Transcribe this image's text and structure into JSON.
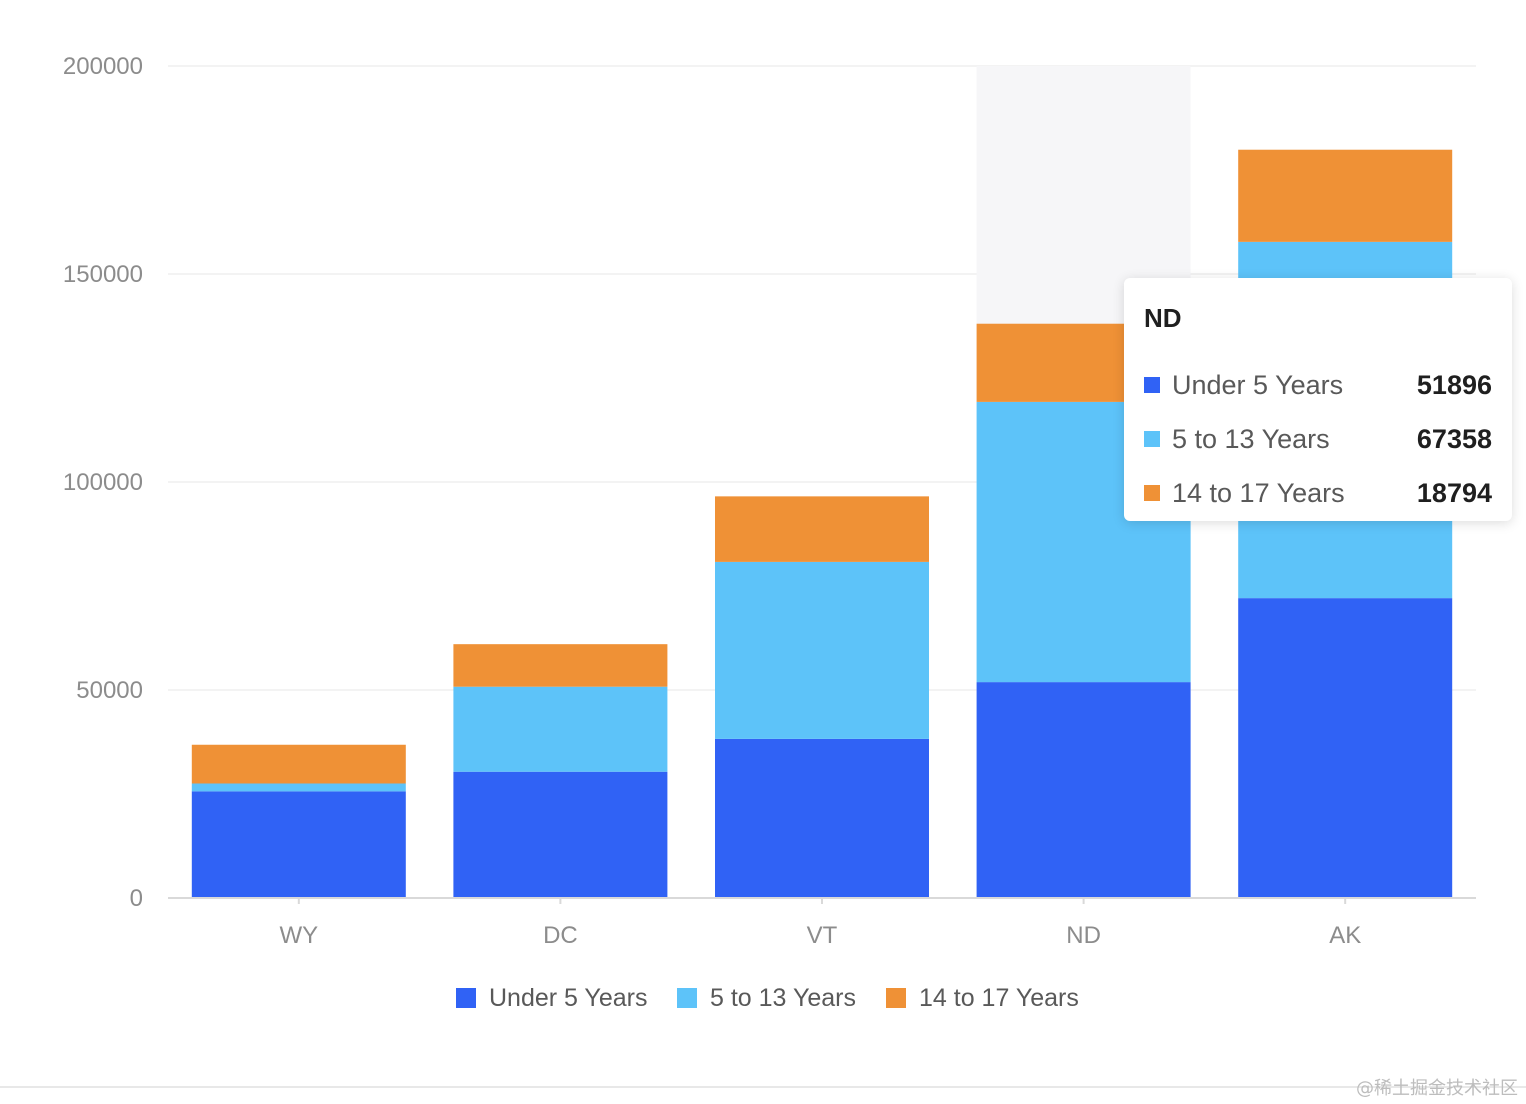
{
  "chart_data": {
    "type": "bar",
    "stacked": true,
    "categories": [
      "WY",
      "DC",
      "VT",
      "ND",
      "AK"
    ],
    "series": [
      {
        "name": "Under 5 Years",
        "color": "#3062f5",
        "values": [
          25635,
          30352,
          38253,
          51896,
          72083
        ]
      },
      {
        "name": "5 to 13 Years",
        "color": "#5dc3f9",
        "values": [
          1890,
          20439,
          42538,
          67358,
          85640
        ]
      },
      {
        "name": "14 to 17 Years",
        "color": "#ef9136",
        "values": [
          9314,
          10225,
          15757,
          18794,
          22153
        ]
      }
    ],
    "ylim": [
      0,
      200000
    ],
    "yticks": [
      "0",
      "50000",
      "100000",
      "150000",
      "200000"
    ],
    "grid": true,
    "legend": "bottom",
    "highlighted_category": "ND"
  },
  "tooltip": {
    "title": "ND",
    "rows": [
      {
        "name": "Under 5 Years",
        "value": "51896",
        "color": "#3062f5"
      },
      {
        "name": "5 to 13 Years",
        "value": "67358",
        "color": "#5dc3f9"
      },
      {
        "name": "14 to 17 Years",
        "value": "18794",
        "color": "#ef9136"
      }
    ]
  },
  "watermark": "@稀土掘金技术社区"
}
